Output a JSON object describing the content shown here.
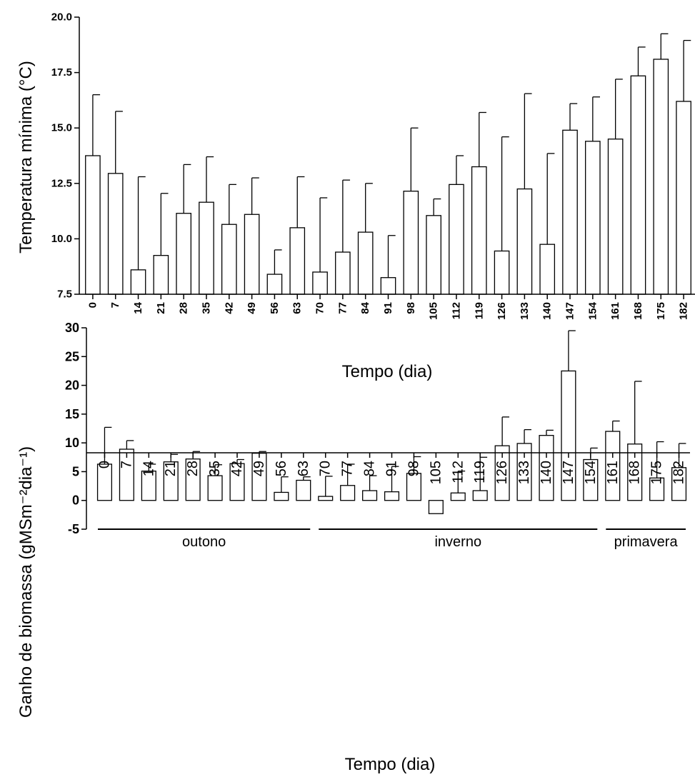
{
  "chart_data": [
    {
      "type": "bar",
      "ylabel": "Temperatura mínima (°C)",
      "xlabel": "Tempo (dia)",
      "ylim": [
        7.5,
        20.0
      ],
      "yticks": [
        "7.5",
        "10.0",
        "12.5",
        "15.0",
        "17.5",
        "20.0"
      ],
      "categories": [
        "0",
        "7",
        "14",
        "21",
        "28",
        "35",
        "42",
        "49",
        "56",
        "63",
        "70",
        "77",
        "84",
        "91",
        "98",
        "105",
        "112",
        "119",
        "126",
        "133",
        "140",
        "147",
        "154",
        "161",
        "168",
        "175",
        "182"
      ],
      "values": [
        13.75,
        12.95,
        8.6,
        9.25,
        11.15,
        11.65,
        10.65,
        11.1,
        8.4,
        10.5,
        8.5,
        9.4,
        10.3,
        8.25,
        12.15,
        11.05,
        12.45,
        13.25,
        9.45,
        12.25,
        9.75,
        14.9,
        14.4,
        14.5,
        17.35,
        18.1,
        16.2
      ],
      "errors": [
        2.75,
        2.8,
        4.2,
        2.8,
        2.2,
        2.05,
        1.8,
        1.65,
        1.1,
        2.3,
        3.35,
        3.25,
        2.2,
        1.9,
        2.85,
        0.75,
        1.3,
        2.45,
        5.15,
        4.3,
        4.1,
        1.2,
        2.0,
        2.7,
        1.3,
        1.15,
        2.75
      ]
    },
    {
      "type": "bar",
      "ylabel": "Ganho de biomassa (gMSm⁻²dia⁻¹)",
      "xlabel": "Tempo (dia)",
      "ylim": [
        -5,
        30
      ],
      "yticks": [
        "-5",
        "0",
        "5",
        "10",
        "15",
        "20",
        "25",
        "30"
      ],
      "categories": [
        "0",
        "7",
        "14",
        "21",
        "28",
        "35",
        "42",
        "49",
        "56",
        "63",
        "70",
        "77",
        "84",
        "91",
        "98",
        "105",
        "112",
        "119",
        "126",
        "133",
        "140",
        "147",
        "154",
        "161",
        "168",
        "175",
        "182"
      ],
      "values": [
        6.3,
        8.9,
        5.1,
        6.7,
        7.2,
        4.3,
        6.4,
        8.2,
        1.4,
        3.5,
        0.7,
        2.6,
        1.7,
        1.5,
        4.7,
        -2.3,
        1.3,
        1.7,
        9.5,
        9.9,
        11.3,
        22.5,
        7.1,
        12.0,
        9.8,
        3.9,
        5.7
      ],
      "errors": [
        6.4,
        1.5,
        1.2,
        1.3,
        1.3,
        1.9,
        0.7,
        0.3,
        2.7,
        0.6,
        3.5,
        3.7,
        2.6,
        4.4,
        2.9,
        0,
        3.8,
        5.8,
        5.0,
        2.4,
        0.9,
        7.0,
        2.0,
        1.8,
        10.9,
        6.3,
        4.2
      ],
      "seasons": [
        {
          "label": "outono",
          "from": 0,
          "to": 9
        },
        {
          "label": "inverno",
          "from": 10,
          "to": 22
        },
        {
          "label": "primavera",
          "from": 23,
          "to": 26
        }
      ]
    }
  ]
}
